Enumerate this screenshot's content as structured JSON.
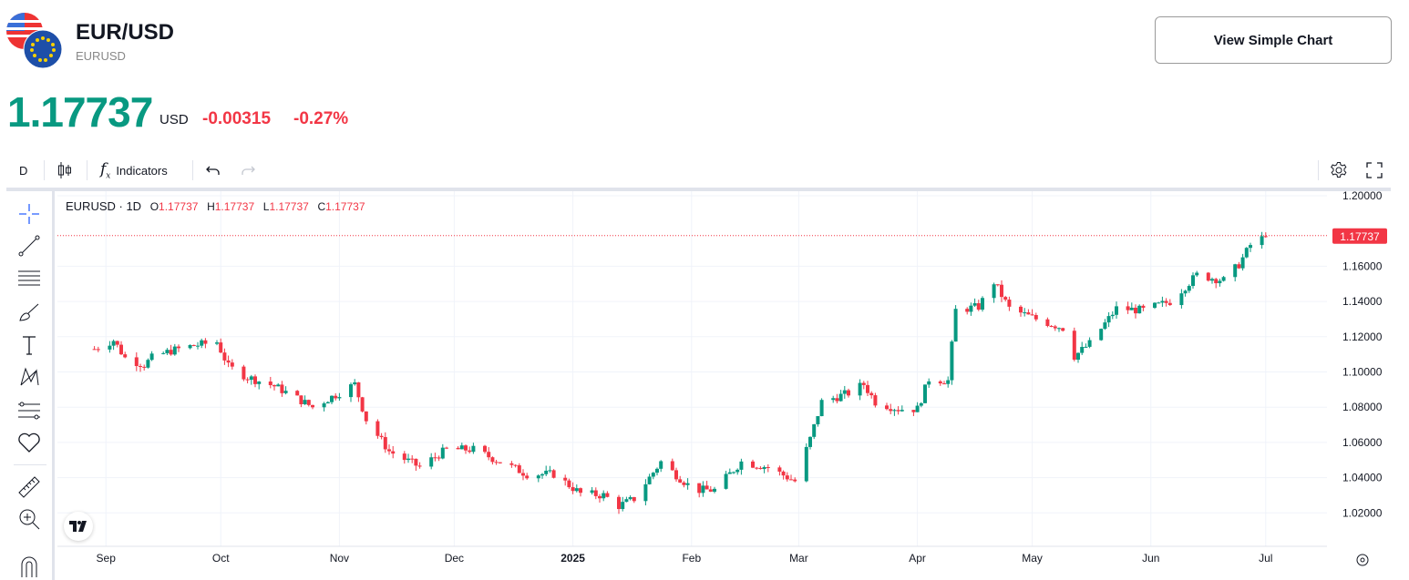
{
  "header": {
    "title": "EUR/USD",
    "symbol": "EURUSD",
    "price": "1.17737",
    "currency": "USD",
    "change": "-0.00315",
    "change_pct": "-0.27%",
    "view_simple_chart": "View Simple Chart"
  },
  "toolbar": {
    "interval": "D",
    "indicators": "Indicators"
  },
  "legend": {
    "symbol": "EURUSD · 1D",
    "o_label": "O",
    "o": "1.17737",
    "h_label": "H",
    "h": "1.17737",
    "l_label": "L",
    "l": "1.17737",
    "c_label": "C",
    "c": "1.17737"
  },
  "colors": {
    "up": "#089981",
    "down": "#f23645"
  },
  "chart_data": {
    "type": "candlestick",
    "yticks": [
      "1.20000",
      "1.16000",
      "1.14000",
      "1.12000",
      "1.10000",
      "1.08000",
      "1.06000",
      "1.04000",
      "1.02000"
    ],
    "ylim": [
      1.01,
      1.205
    ],
    "current_price_label": "1.17737",
    "xticks": [
      "Sep",
      "Oct",
      "Nov",
      "Dec",
      "2025",
      "Feb",
      "Mar",
      "Apr",
      "May",
      "Jun",
      "Jul"
    ],
    "anchors": [
      [
        "2024-08-29",
        1.113
      ],
      [
        "2024-09-03",
        1.118
      ],
      [
        "2024-09-06",
        1.108
      ],
      [
        "2024-09-11",
        1.104
      ],
      [
        "2024-09-13",
        1.108
      ],
      [
        "2024-09-18",
        1.112
      ],
      [
        "2024-09-24",
        1.115
      ],
      [
        "2024-09-30",
        1.117
      ],
      [
        "2024-10-03",
        1.103
      ],
      [
        "2024-10-08",
        1.097
      ],
      [
        "2024-10-15",
        1.092
      ],
      [
        "2024-10-21",
        1.085
      ],
      [
        "2024-10-25",
        1.08
      ],
      [
        "2024-10-31",
        1.087
      ],
      [
        "2024-11-05",
        1.093
      ],
      [
        "2024-11-08",
        1.073
      ],
      [
        "2024-11-14",
        1.055
      ],
      [
        "2024-11-22",
        1.046
      ],
      [
        "2024-11-29",
        1.056
      ],
      [
        "2024-12-06",
        1.056
      ],
      [
        "2024-12-13",
        1.049
      ],
      [
        "2024-12-20",
        1.042
      ],
      [
        "2024-12-27",
        1.042
      ],
      [
        "2025-01-03",
        1.031
      ],
      [
        "2025-01-09",
        1.03
      ],
      [
        "2025-01-13",
        1.024
      ],
      [
        "2025-01-17",
        1.028
      ],
      [
        "2025-01-24",
        1.049
      ],
      [
        "2025-01-31",
        1.036
      ],
      [
        "2025-02-03",
        1.033
      ],
      [
        "2025-02-07",
        1.033
      ],
      [
        "2025-02-14",
        1.049
      ],
      [
        "2025-02-21",
        1.046
      ],
      [
        "2025-02-28",
        1.038
      ],
      [
        "2025-03-04",
        1.062
      ],
      [
        "2025-03-07",
        1.083
      ],
      [
        "2025-03-14",
        1.088
      ],
      [
        "2025-03-18",
        1.093
      ],
      [
        "2025-03-21",
        1.083
      ],
      [
        "2025-03-27",
        1.079
      ],
      [
        "2025-04-01",
        1.079
      ],
      [
        "2025-04-04",
        1.096
      ],
      [
        "2025-04-09",
        1.095
      ],
      [
        "2025-04-11",
        1.135
      ],
      [
        "2025-04-17",
        1.137
      ],
      [
        "2025-04-21",
        1.151
      ],
      [
        "2025-04-25",
        1.136
      ],
      [
        "2025-05-02",
        1.13
      ],
      [
        "2025-05-09",
        1.125
      ],
      [
        "2025-05-12",
        1.109
      ],
      [
        "2025-05-16",
        1.116
      ],
      [
        "2025-05-23",
        1.136
      ],
      [
        "2025-05-30",
        1.135
      ],
      [
        "2025-06-06",
        1.14
      ],
      [
        "2025-06-13",
        1.155
      ],
      [
        "2025-06-20",
        1.152
      ],
      [
        "2025-06-24",
        1.161
      ],
      [
        "2025-06-27",
        1.172
      ],
      [
        "2025-07-01",
        1.177
      ]
    ]
  }
}
